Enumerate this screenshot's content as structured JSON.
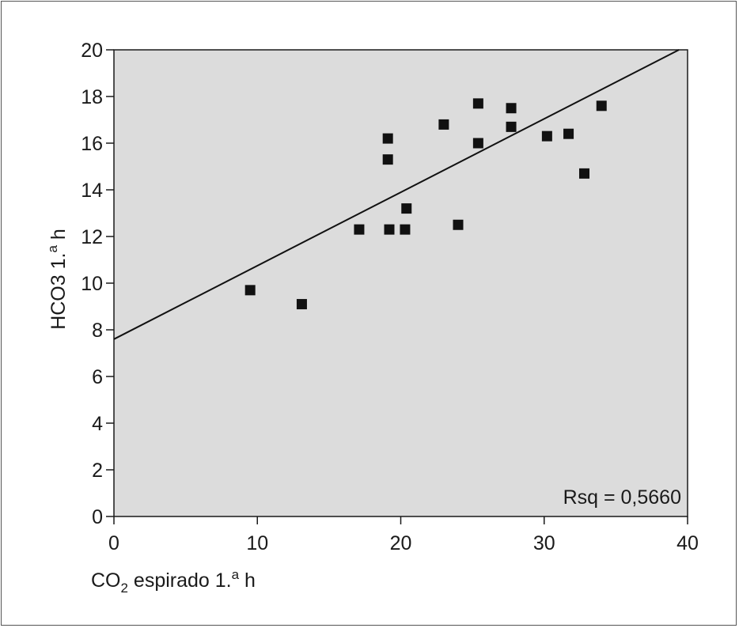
{
  "chart_data": {
    "type": "scatter",
    "xlabel": {
      "prefix": "CO",
      "sub": "2",
      "rest": " espirado 1.",
      "sup": "a",
      "end": " h"
    },
    "ylabel": {
      "main": "HCO3 1.",
      "sup": "a",
      "end": " h"
    },
    "xlim": [
      0,
      40
    ],
    "ylim": [
      0,
      20
    ],
    "xticks": [
      0,
      10,
      20,
      30,
      40
    ],
    "yticks": [
      0,
      2,
      4,
      6,
      8,
      10,
      12,
      14,
      16,
      18,
      20
    ],
    "grid": false,
    "plot_background": "#dcdcdc",
    "marker_color": "#111111",
    "marker": "square",
    "points": [
      {
        "x": 9.5,
        "y": 9.7
      },
      {
        "x": 13.1,
        "y": 9.1
      },
      {
        "x": 17.1,
        "y": 12.3
      },
      {
        "x": 19.1,
        "y": 16.2
      },
      {
        "x": 19.1,
        "y": 15.3
      },
      {
        "x": 19.2,
        "y": 12.3
      },
      {
        "x": 20.3,
        "y": 12.3
      },
      {
        "x": 20.4,
        "y": 13.2
      },
      {
        "x": 23.0,
        "y": 16.8
      },
      {
        "x": 24.0,
        "y": 12.5
      },
      {
        "x": 25.4,
        "y": 17.7
      },
      {
        "x": 25.4,
        "y": 16.0
      },
      {
        "x": 27.7,
        "y": 17.5
      },
      {
        "x": 27.7,
        "y": 16.7
      },
      {
        "x": 30.2,
        "y": 16.3
      },
      {
        "x": 31.7,
        "y": 16.4
      },
      {
        "x": 32.8,
        "y": 14.7
      },
      {
        "x": 34.0,
        "y": 17.6
      }
    ],
    "fit_line": {
      "x0": 0,
      "y0": 7.6,
      "x1": 39.4,
      "y1": 20
    },
    "annotation": "Rsq = 0,5660"
  }
}
